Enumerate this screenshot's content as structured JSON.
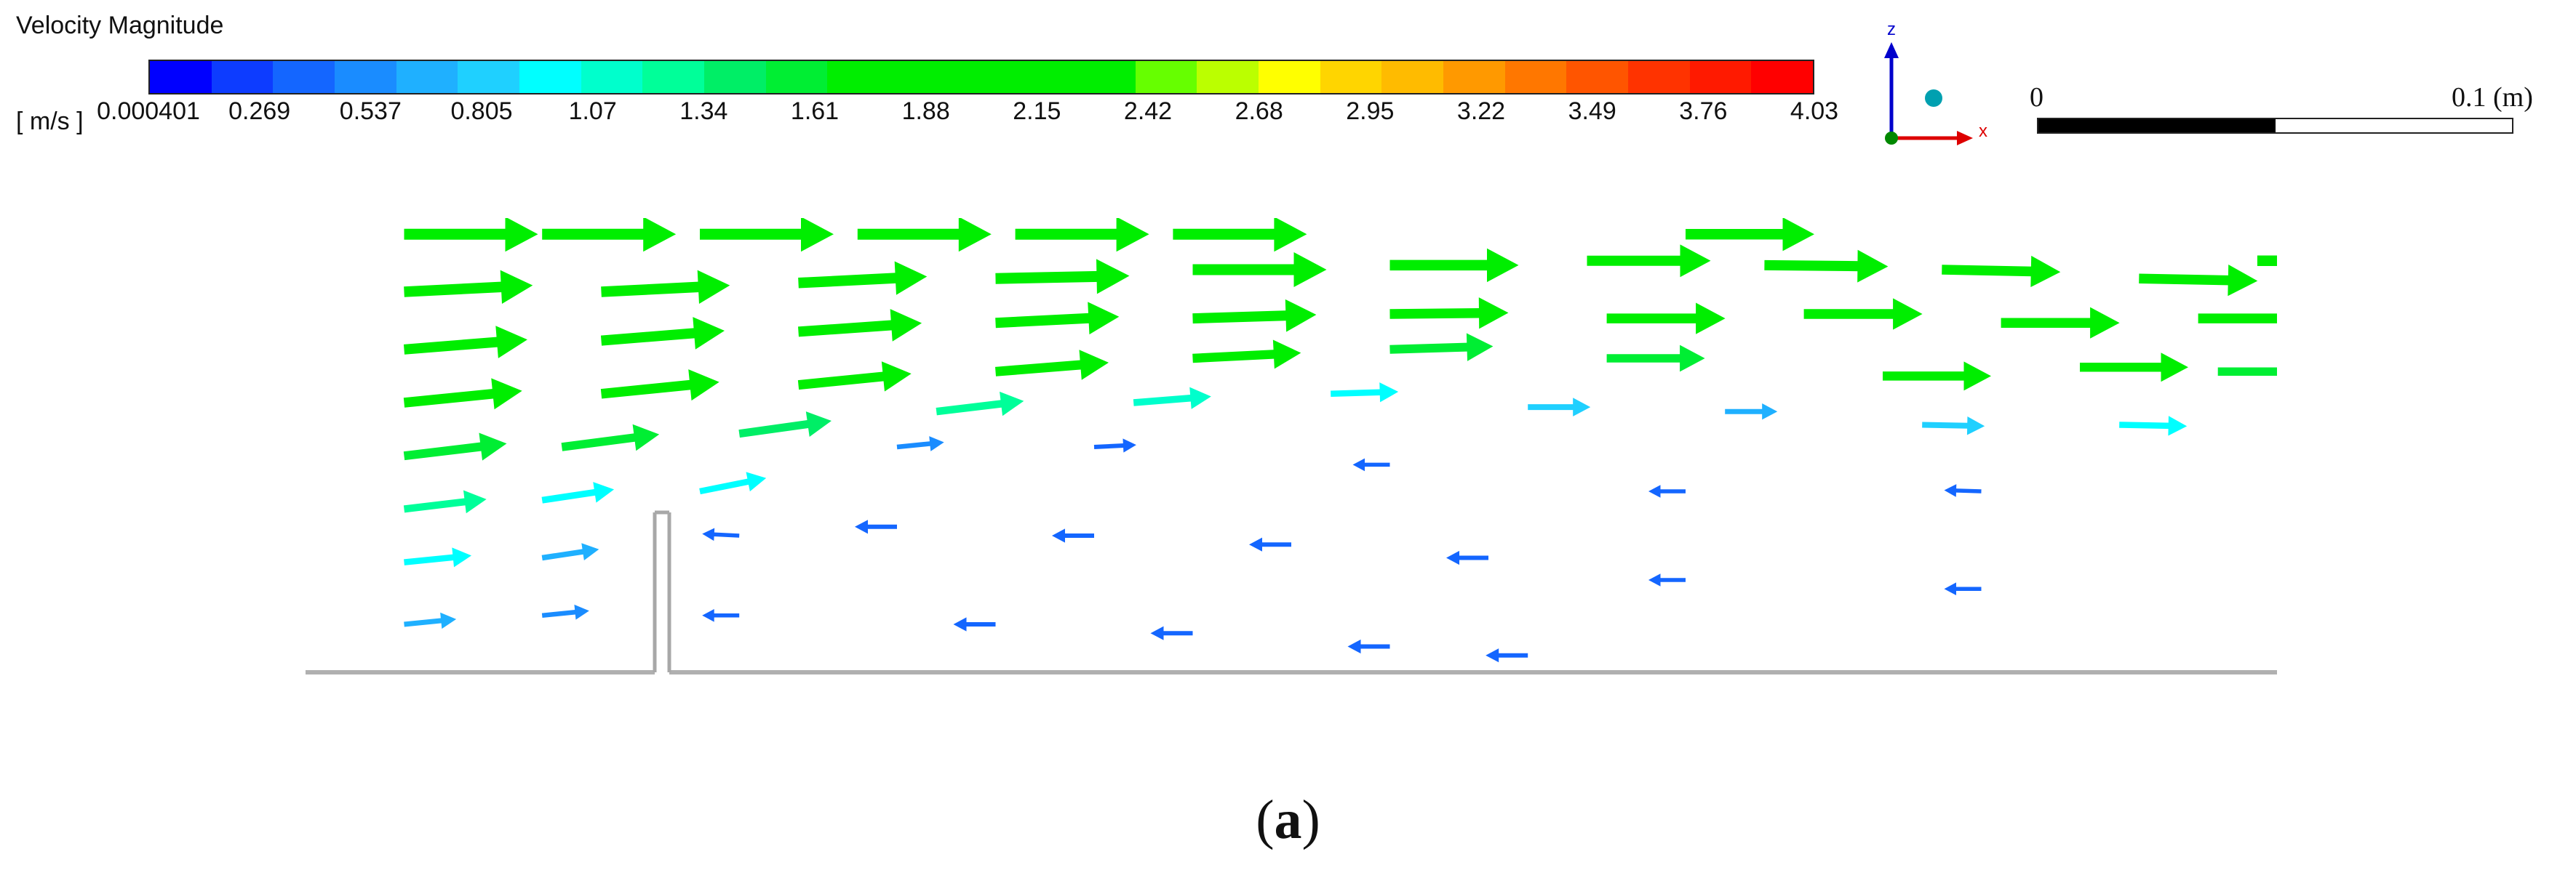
{
  "legend": {
    "title": "Velocity Magnitude",
    "units": "[ m/s ]",
    "ticks": [
      "0.000401",
      "0.269",
      "0.537",
      "0.805",
      "1.07",
      "1.34",
      "1.61",
      "1.88",
      "2.15",
      "2.42",
      "2.68",
      "2.95",
      "3.22",
      "3.49",
      "3.76",
      "4.03"
    ],
    "colors": [
      "#0000ff",
      "#0d3cff",
      "#1466ff",
      "#1a8cff",
      "#1fb0ff",
      "#1fd0ff",
      "#00ffff",
      "#00ffcc",
      "#00ff99",
      "#00ee66",
      "#00ee33",
      "#00ee00",
      "#00ee00",
      "#00ee00",
      "#00ee00",
      "#00ee00",
      "#66ff00",
      "#bbff00",
      "#ffff00",
      "#ffd500",
      "#ffbb00",
      "#ff9900",
      "#ff7700",
      "#ff5500",
      "#ff3300",
      "#ff1a00",
      "#ff0000"
    ]
  },
  "axis_triad": {
    "z_label": "z",
    "x_label": "x",
    "z_color": "#0000cc",
    "x_color": "#dd0000",
    "y_color": "#008800",
    "sphere_color": "#00a0b0"
  },
  "scale": {
    "zero": "0",
    "max": "0.1 (m)"
  },
  "caption": {
    "letter": "a",
    "open": "(",
    "close": ")"
  },
  "chart_data": {
    "type": "vector_field",
    "quantity": "Velocity Magnitude",
    "unit": "m/s",
    "range": [
      0.000401,
      4.03
    ],
    "vectors": [
      {
        "x": 0.05,
        "z": 0.98,
        "u": 1,
        "w": 0.0,
        "v": 2.2
      },
      {
        "x": 0.12,
        "z": 0.98,
        "u": 1,
        "w": 0.0,
        "v": 2.2
      },
      {
        "x": 0.2,
        "z": 0.98,
        "u": 1,
        "w": 0.0,
        "v": 2.2
      },
      {
        "x": 0.28,
        "z": 0.98,
        "u": 1,
        "w": 0.0,
        "v": 2.2
      },
      {
        "x": 0.36,
        "z": 0.98,
        "u": 1,
        "w": 0.0,
        "v": 2.2
      },
      {
        "x": 0.44,
        "z": 0.98,
        "u": 1,
        "w": 0.0,
        "v": 2.2
      },
      {
        "x": 0.7,
        "z": 0.98,
        "u": 1,
        "w": 0.0,
        "v": 2.1
      },
      {
        "x": 0.05,
        "z": 0.85,
        "u": 1,
        "w": 0.05,
        "v": 2.1
      },
      {
        "x": 0.15,
        "z": 0.85,
        "u": 1,
        "w": 0.05,
        "v": 2.1
      },
      {
        "x": 0.25,
        "z": 0.87,
        "u": 1,
        "w": 0.05,
        "v": 2.1
      },
      {
        "x": 0.35,
        "z": 0.88,
        "u": 1,
        "w": 0.02,
        "v": 2.2
      },
      {
        "x": 0.45,
        "z": 0.9,
        "u": 1,
        "w": 0.0,
        "v": 2.2
      },
      {
        "x": 0.55,
        "z": 0.91,
        "u": 1,
        "w": 0.0,
        "v": 2.1
      },
      {
        "x": 0.65,
        "z": 0.92,
        "u": 1,
        "w": 0.0,
        "v": 2.0
      },
      {
        "x": 0.74,
        "z": 0.91,
        "u": 1,
        "w": -0.01,
        "v": 2.0
      },
      {
        "x": 0.83,
        "z": 0.9,
        "u": 1,
        "w": -0.02,
        "v": 1.9
      },
      {
        "x": 0.93,
        "z": 0.88,
        "u": 1,
        "w": -0.02,
        "v": 1.9
      },
      {
        "x": 0.99,
        "z": 0.92,
        "u": 1,
        "w": 0.0,
        "v": 2.1
      },
      {
        "x": 0.05,
        "z": 0.72,
        "u": 1,
        "w": 0.08,
        "v": 2.0
      },
      {
        "x": 0.15,
        "z": 0.74,
        "u": 1,
        "w": 0.08,
        "v": 2.0
      },
      {
        "x": 0.25,
        "z": 0.76,
        "u": 1,
        "w": 0.07,
        "v": 2.0
      },
      {
        "x": 0.35,
        "z": 0.78,
        "u": 1,
        "w": 0.05,
        "v": 2.0
      },
      {
        "x": 0.45,
        "z": 0.79,
        "u": 1,
        "w": 0.03,
        "v": 2.0
      },
      {
        "x": 0.55,
        "z": 0.8,
        "u": 1,
        "w": 0.01,
        "v": 1.9
      },
      {
        "x": 0.66,
        "z": 0.79,
        "u": 1,
        "w": 0.0,
        "v": 1.9
      },
      {
        "x": 0.76,
        "z": 0.8,
        "u": 1,
        "w": 0.0,
        "v": 1.9
      },
      {
        "x": 0.86,
        "z": 0.78,
        "u": 1,
        "w": 0.0,
        "v": 1.9
      },
      {
        "x": 0.96,
        "z": 0.79,
        "u": 1,
        "w": 0.0,
        "v": 1.9
      },
      {
        "x": 0.05,
        "z": 0.6,
        "u": 1,
        "w": 0.1,
        "v": 1.9
      },
      {
        "x": 0.15,
        "z": 0.62,
        "u": 1,
        "w": 0.1,
        "v": 1.9
      },
      {
        "x": 0.25,
        "z": 0.64,
        "u": 1,
        "w": 0.1,
        "v": 1.8
      },
      {
        "x": 0.35,
        "z": 0.67,
        "u": 1,
        "w": 0.08,
        "v": 1.8
      },
      {
        "x": 0.45,
        "z": 0.7,
        "u": 1,
        "w": 0.05,
        "v": 1.7
      },
      {
        "x": 0.55,
        "z": 0.72,
        "u": 1,
        "w": 0.03,
        "v": 1.6
      },
      {
        "x": 0.66,
        "z": 0.7,
        "u": 1,
        "w": 0.0,
        "v": 1.5
      },
      {
        "x": 0.8,
        "z": 0.66,
        "u": 1,
        "w": 0.0,
        "v": 1.7
      },
      {
        "x": 0.9,
        "z": 0.68,
        "u": 1,
        "w": 0.0,
        "v": 1.7
      },
      {
        "x": 0.97,
        "z": 0.67,
        "u": 1,
        "w": 0.0,
        "v": 1.5
      },
      {
        "x": 0.05,
        "z": 0.48,
        "u": 1,
        "w": 0.12,
        "v": 1.6
      },
      {
        "x": 0.13,
        "z": 0.5,
        "u": 1,
        "w": 0.13,
        "v": 1.5
      },
      {
        "x": 0.22,
        "z": 0.53,
        "u": 1,
        "w": 0.14,
        "v": 1.4
      },
      {
        "x": 0.32,
        "z": 0.58,
        "u": 1,
        "w": 0.12,
        "v": 1.3
      },
      {
        "x": 0.42,
        "z": 0.6,
        "u": 1,
        "w": 0.08,
        "v": 1.1
      },
      {
        "x": 0.52,
        "z": 0.62,
        "u": 1,
        "w": 0.03,
        "v": 0.9
      },
      {
        "x": 0.62,
        "z": 0.59,
        "u": 1,
        "w": 0.0,
        "v": 0.8
      },
      {
        "x": 0.72,
        "z": 0.58,
        "u": 1,
        "w": 0.0,
        "v": 0.6
      },
      {
        "x": 0.82,
        "z": 0.55,
        "u": 1,
        "w": -0.02,
        "v": 0.8
      },
      {
        "x": 0.92,
        "z": 0.55,
        "u": 1,
        "w": -0.02,
        "v": 0.9
      },
      {
        "x": 0.05,
        "z": 0.36,
        "u": 1,
        "w": 0.12,
        "v": 1.2
      },
      {
        "x": 0.12,
        "z": 0.38,
        "u": 1,
        "w": 0.15,
        "v": 1.0
      },
      {
        "x": 0.2,
        "z": 0.4,
        "u": 1,
        "w": 0.2,
        "v": 0.9
      },
      {
        "x": 0.3,
        "z": 0.5,
        "u": 1,
        "w": 0.1,
        "v": 0.5
      },
      {
        "x": 0.4,
        "z": 0.5,
        "u": 1,
        "w": 0.05,
        "v": 0.4
      },
      {
        "x": 0.55,
        "z": 0.46,
        "u": -1,
        "w": 0.0,
        "v": 0.3
      },
      {
        "x": 0.7,
        "z": 0.4,
        "u": -1,
        "w": 0.0,
        "v": 0.3
      },
      {
        "x": 0.85,
        "z": 0.4,
        "u": -1,
        "w": 0.03,
        "v": 0.3
      },
      {
        "x": 0.05,
        "z": 0.24,
        "u": 1,
        "w": 0.1,
        "v": 0.9
      },
      {
        "x": 0.12,
        "z": 0.25,
        "u": 1,
        "w": 0.15,
        "v": 0.7
      },
      {
        "x": 0.22,
        "z": 0.3,
        "u": -1,
        "w": 0.05,
        "v": 0.3
      },
      {
        "x": 0.3,
        "z": 0.32,
        "u": -1,
        "w": 0.0,
        "v": 0.4
      },
      {
        "x": 0.4,
        "z": 0.3,
        "u": -1,
        "w": 0.0,
        "v": 0.4
      },
      {
        "x": 0.5,
        "z": 0.28,
        "u": -1,
        "w": 0.0,
        "v": 0.4
      },
      {
        "x": 0.6,
        "z": 0.25,
        "u": -1,
        "w": 0.0,
        "v": 0.4
      },
      {
        "x": 0.7,
        "z": 0.2,
        "u": -1,
        "w": 0.0,
        "v": 0.3
      },
      {
        "x": 0.85,
        "z": 0.18,
        "u": -1,
        "w": 0.0,
        "v": 0.3
      },
      {
        "x": 0.05,
        "z": 0.1,
        "u": 1,
        "w": 0.1,
        "v": 0.6
      },
      {
        "x": 0.12,
        "z": 0.12,
        "u": 1,
        "w": 0.1,
        "v": 0.5
      },
      {
        "x": 0.22,
        "z": 0.12,
        "u": -1,
        "w": 0.0,
        "v": 0.3
      },
      {
        "x": 0.35,
        "z": 0.1,
        "u": -1,
        "w": 0.0,
        "v": 0.4
      },
      {
        "x": 0.45,
        "z": 0.08,
        "u": -1,
        "w": 0.0,
        "v": 0.4
      },
      {
        "x": 0.55,
        "z": 0.05,
        "u": -1,
        "w": 0.0,
        "v": 0.4
      },
      {
        "x": 0.62,
        "z": 0.03,
        "u": -1,
        "w": 0.0,
        "v": 0.4
      }
    ]
  }
}
